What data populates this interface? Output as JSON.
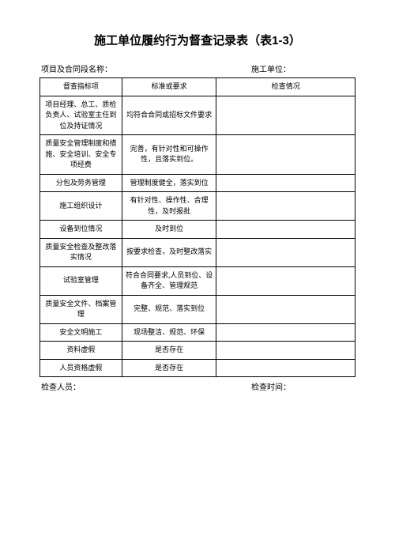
{
  "title": "施工单位履约行为督查记录表（表1-3）",
  "header": {
    "project_label": "项目及合同段名称：",
    "unit_label": "施工单位："
  },
  "table": {
    "columns": [
      "督查指标项",
      "标准或要求",
      "检查情况"
    ],
    "rows": [
      {
        "item": "项目经理、总工、质检负责人、试验室主任到位及持证情况",
        "standard": "均符合合同或招标文件要求",
        "check": ""
      },
      {
        "item": "质量安全管理制度和措施、安全培训、安全专项经费",
        "standard": "完善，有针对性和可操作性，且落实到位。",
        "check": ""
      },
      {
        "item": "分包及劳务管理",
        "standard": "管理制度健全，落实到位",
        "check": ""
      },
      {
        "item": "施工组织设计",
        "standard": "有针对性、操作性、合理性，及时报批",
        "check": ""
      },
      {
        "item": "设备到位情况",
        "standard": "及时到位",
        "check": ""
      },
      {
        "item": "质量安全检查及整改落实情况",
        "standard": "按要求检查，及时整改落实",
        "check": ""
      },
      {
        "item": "试验室管理",
        "standard": "符合合同要求,人员到位、设备齐全、管理规范",
        "check": ""
      },
      {
        "item": "质量安全文件、档案管理",
        "standard": "完整、规范、落实到位",
        "check": ""
      },
      {
        "item": "安全文明施工",
        "standard": "现场整洁、规范、环保",
        "check": ""
      },
      {
        "item": "资料虚假",
        "standard": "是否存在",
        "check": ""
      },
      {
        "item": "人员资格虚假",
        "standard": "是否存在",
        "check": ""
      }
    ]
  },
  "footer": {
    "inspector_label": "检查人员：",
    "datetime_label": "检查时间："
  },
  "styling": {
    "background_color": "#ffffff",
    "text_color": "#000000",
    "border_color": "#000000",
    "title_fontsize": 15,
    "body_fontsize": 9,
    "label_fontsize": 10,
    "col_widths_pct": [
      26,
      30,
      44
    ]
  }
}
